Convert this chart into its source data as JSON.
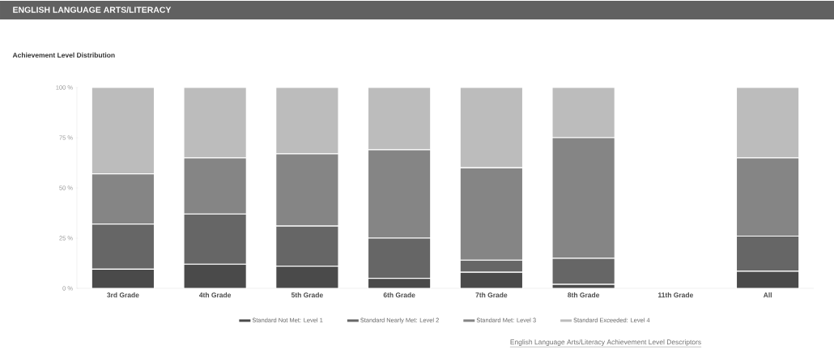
{
  "chart_data": {
    "type": "bar",
    "stacked": true,
    "title": "ENGLISH LANGUAGE ARTS/LITERACY",
    "subtitle": "Achievement Level Distribution",
    "categories": [
      "3rd Grade",
      "4th Grade",
      "5th Grade",
      "6th Grade",
      "7th Grade",
      "8th Grade",
      "11th Grade",
      "All"
    ],
    "series": [
      {
        "name": "Standard Not Met: Level 1",
        "color": "#4a4a4a",
        "values": [
          9.5,
          12,
          11,
          5,
          8,
          2,
          null,
          8.5
        ]
      },
      {
        "name": "Standard Nearly Met: Level 2",
        "color": "#666666",
        "values": [
          22.5,
          25,
          20,
          20,
          6,
          13,
          null,
          17.5
        ]
      },
      {
        "name": "Standard Met: Level 3",
        "color": "#858585",
        "values": [
          25,
          28,
          36,
          44,
          46,
          60,
          null,
          39
        ]
      },
      {
        "name": "Standard Exceeded: Level 4",
        "color": "#bcbcbc",
        "values": [
          43,
          35,
          33,
          31,
          40,
          25,
          null,
          35
        ]
      }
    ],
    "ylim": [
      0,
      100
    ],
    "yticks": [
      {
        "value": 0,
        "label": "0 %"
      },
      {
        "value": 25,
        "label": "25 %"
      },
      {
        "value": 50,
        "label": "50 %"
      },
      {
        "value": 75,
        "label": "75 %"
      },
      {
        "value": 100,
        "label": "100 %"
      }
    ],
    "legend": "bottom",
    "annotations": [
      "English Language Arts/Literacy Achievement Level Descriptors"
    ]
  }
}
